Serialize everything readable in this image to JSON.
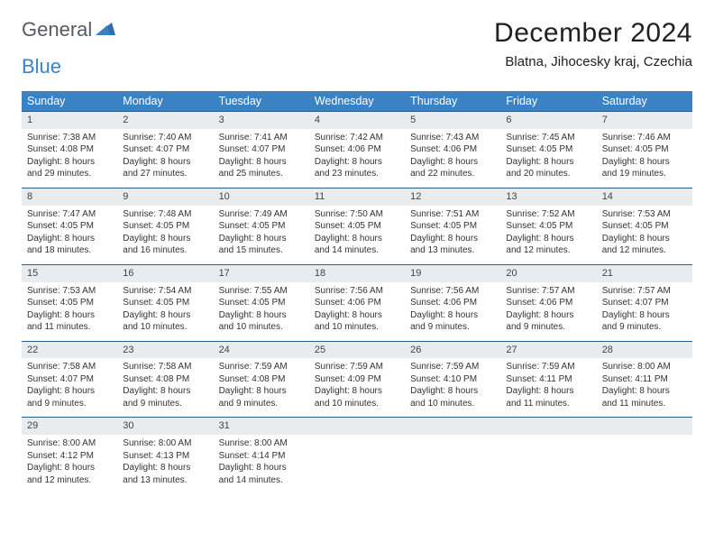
{
  "brand": {
    "part1": "General",
    "part2": "Blue"
  },
  "title": "December 2024",
  "location": "Blatna, Jihocesky kraj, Czechia",
  "colors": {
    "header_bg": "#3b82c4",
    "header_text": "#ffffff",
    "daynum_bg": "#e9ecef",
    "row_divider": "#2a5e8a",
    "text": "#333333",
    "brand_gray": "#555b63",
    "brand_blue": "#3b82c4"
  },
  "font": {
    "family": "Arial",
    "th_size": 12.5,
    "body_size": 10,
    "title_size": 30,
    "location_size": 15
  },
  "weekdays": [
    "Sunday",
    "Monday",
    "Tuesday",
    "Wednesday",
    "Thursday",
    "Friday",
    "Saturday"
  ],
  "weeks": [
    [
      {
        "n": "1",
        "sunrise": "7:38 AM",
        "sunset": "4:08 PM",
        "daylight": "8 hours and 29 minutes."
      },
      {
        "n": "2",
        "sunrise": "7:40 AM",
        "sunset": "4:07 PM",
        "daylight": "8 hours and 27 minutes."
      },
      {
        "n": "3",
        "sunrise": "7:41 AM",
        "sunset": "4:07 PM",
        "daylight": "8 hours and 25 minutes."
      },
      {
        "n": "4",
        "sunrise": "7:42 AM",
        "sunset": "4:06 PM",
        "daylight": "8 hours and 23 minutes."
      },
      {
        "n": "5",
        "sunrise": "7:43 AM",
        "sunset": "4:06 PM",
        "daylight": "8 hours and 22 minutes."
      },
      {
        "n": "6",
        "sunrise": "7:45 AM",
        "sunset": "4:05 PM",
        "daylight": "8 hours and 20 minutes."
      },
      {
        "n": "7",
        "sunrise": "7:46 AM",
        "sunset": "4:05 PM",
        "daylight": "8 hours and 19 minutes."
      }
    ],
    [
      {
        "n": "8",
        "sunrise": "7:47 AM",
        "sunset": "4:05 PM",
        "daylight": "8 hours and 18 minutes."
      },
      {
        "n": "9",
        "sunrise": "7:48 AM",
        "sunset": "4:05 PM",
        "daylight": "8 hours and 16 minutes."
      },
      {
        "n": "10",
        "sunrise": "7:49 AM",
        "sunset": "4:05 PM",
        "daylight": "8 hours and 15 minutes."
      },
      {
        "n": "11",
        "sunrise": "7:50 AM",
        "sunset": "4:05 PM",
        "daylight": "8 hours and 14 minutes."
      },
      {
        "n": "12",
        "sunrise": "7:51 AM",
        "sunset": "4:05 PM",
        "daylight": "8 hours and 13 minutes."
      },
      {
        "n": "13",
        "sunrise": "7:52 AM",
        "sunset": "4:05 PM",
        "daylight": "8 hours and 12 minutes."
      },
      {
        "n": "14",
        "sunrise": "7:53 AM",
        "sunset": "4:05 PM",
        "daylight": "8 hours and 12 minutes."
      }
    ],
    [
      {
        "n": "15",
        "sunrise": "7:53 AM",
        "sunset": "4:05 PM",
        "daylight": "8 hours and 11 minutes."
      },
      {
        "n": "16",
        "sunrise": "7:54 AM",
        "sunset": "4:05 PM",
        "daylight": "8 hours and 10 minutes."
      },
      {
        "n": "17",
        "sunrise": "7:55 AM",
        "sunset": "4:05 PM",
        "daylight": "8 hours and 10 minutes."
      },
      {
        "n": "18",
        "sunrise": "7:56 AM",
        "sunset": "4:06 PM",
        "daylight": "8 hours and 10 minutes."
      },
      {
        "n": "19",
        "sunrise": "7:56 AM",
        "sunset": "4:06 PM",
        "daylight": "8 hours and 9 minutes."
      },
      {
        "n": "20",
        "sunrise": "7:57 AM",
        "sunset": "4:06 PM",
        "daylight": "8 hours and 9 minutes."
      },
      {
        "n": "21",
        "sunrise": "7:57 AM",
        "sunset": "4:07 PM",
        "daylight": "8 hours and 9 minutes."
      }
    ],
    [
      {
        "n": "22",
        "sunrise": "7:58 AM",
        "sunset": "4:07 PM",
        "daylight": "8 hours and 9 minutes."
      },
      {
        "n": "23",
        "sunrise": "7:58 AM",
        "sunset": "4:08 PM",
        "daylight": "8 hours and 9 minutes."
      },
      {
        "n": "24",
        "sunrise": "7:59 AM",
        "sunset": "4:08 PM",
        "daylight": "8 hours and 9 minutes."
      },
      {
        "n": "25",
        "sunrise": "7:59 AM",
        "sunset": "4:09 PM",
        "daylight": "8 hours and 10 minutes."
      },
      {
        "n": "26",
        "sunrise": "7:59 AM",
        "sunset": "4:10 PM",
        "daylight": "8 hours and 10 minutes."
      },
      {
        "n": "27",
        "sunrise": "7:59 AM",
        "sunset": "4:11 PM",
        "daylight": "8 hours and 11 minutes."
      },
      {
        "n": "28",
        "sunrise": "8:00 AM",
        "sunset": "4:11 PM",
        "daylight": "8 hours and 11 minutes."
      }
    ],
    [
      {
        "n": "29",
        "sunrise": "8:00 AM",
        "sunset": "4:12 PM",
        "daylight": "8 hours and 12 minutes."
      },
      {
        "n": "30",
        "sunrise": "8:00 AM",
        "sunset": "4:13 PM",
        "daylight": "8 hours and 13 minutes."
      },
      {
        "n": "31",
        "sunrise": "8:00 AM",
        "sunset": "4:14 PM",
        "daylight": "8 hours and 14 minutes."
      },
      null,
      null,
      null,
      null
    ]
  ],
  "labels": {
    "sunrise": "Sunrise:",
    "sunset": "Sunset:",
    "daylight": "Daylight:"
  }
}
